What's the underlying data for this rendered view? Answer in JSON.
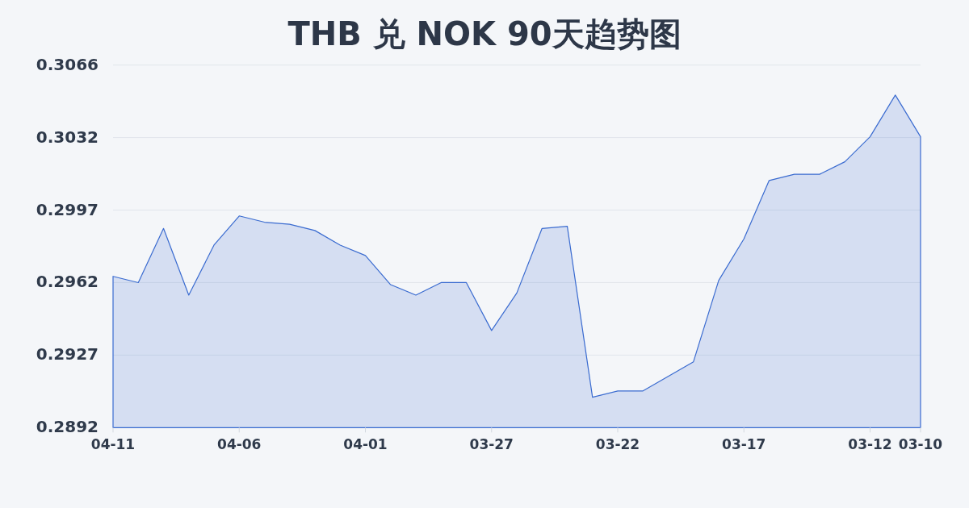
{
  "chart_data": {
    "type": "area",
    "title": "THB 兑 NOK 90天趋势图",
    "x": [
      "--04-11",
      "--04-10",
      "--04-09",
      "--04-08",
      "--04-07",
      "--04-06",
      "--04-05",
      "--04-04",
      "--04-03",
      "--04-02",
      "--04-01",
      "--03-31",
      "--03-30",
      "--03-29",
      "--03-28",
      "--03-27",
      "--03-26",
      "--03-25",
      "--03-24",
      "--03-23",
      "--03-22",
      "--03-21",
      "--03-20",
      "--03-19",
      "--03-18",
      "--03-17",
      "--03-16",
      "--03-15",
      "--03-14",
      "--03-13",
      "--03-12",
      "--03-11",
      "--03-10"
    ],
    "values": [
      0.2965,
      0.2962,
      0.2988,
      0.2956,
      0.298,
      0.2994,
      0.2991,
      0.299,
      0.2987,
      0.298,
      0.2975,
      0.2961,
      0.2956,
      0.2962,
      0.2962,
      0.2939,
      0.2957,
      0.2988,
      0.2989,
      0.2907,
      0.291,
      0.291,
      0.2917,
      0.2924,
      0.2963,
      0.2983,
      0.3011,
      0.3014,
      0.3014,
      0.302,
      0.3032,
      0.3052,
      0.3032
    ],
    "color": "#3a6bd0",
    "xlim": [
      "--04-11",
      "--03-10"
    ],
    "xticks": [
      {
        "value": "--04-11",
        "label": "04-11"
      },
      {
        "value": "--04-06",
        "label": "04-06"
      },
      {
        "value": "--04-01",
        "label": "04-01"
      },
      {
        "value": "--03-27",
        "label": "03-27"
      },
      {
        "value": "--03-22",
        "label": "03-22"
      },
      {
        "value": "--03-17",
        "label": "03-17"
      },
      {
        "value": "--03-12",
        "label": "03-12"
      },
      {
        "value": "--03-10",
        "label": "03-10"
      }
    ],
    "ylim": [
      0.28924,
      0.30664
    ],
    "yticks": [
      {
        "value": 0.28924,
        "label": "0.2892"
      },
      {
        "value": 0.29272,
        "label": "0.2927"
      },
      {
        "value": 0.2962,
        "label": "0.2962"
      },
      {
        "value": 0.29968,
        "label": "0.2997"
      },
      {
        "value": 0.30316,
        "label": "0.3032"
      },
      {
        "value": 0.30664,
        "label": "0.3066"
      }
    ],
    "grid": "y"
  }
}
